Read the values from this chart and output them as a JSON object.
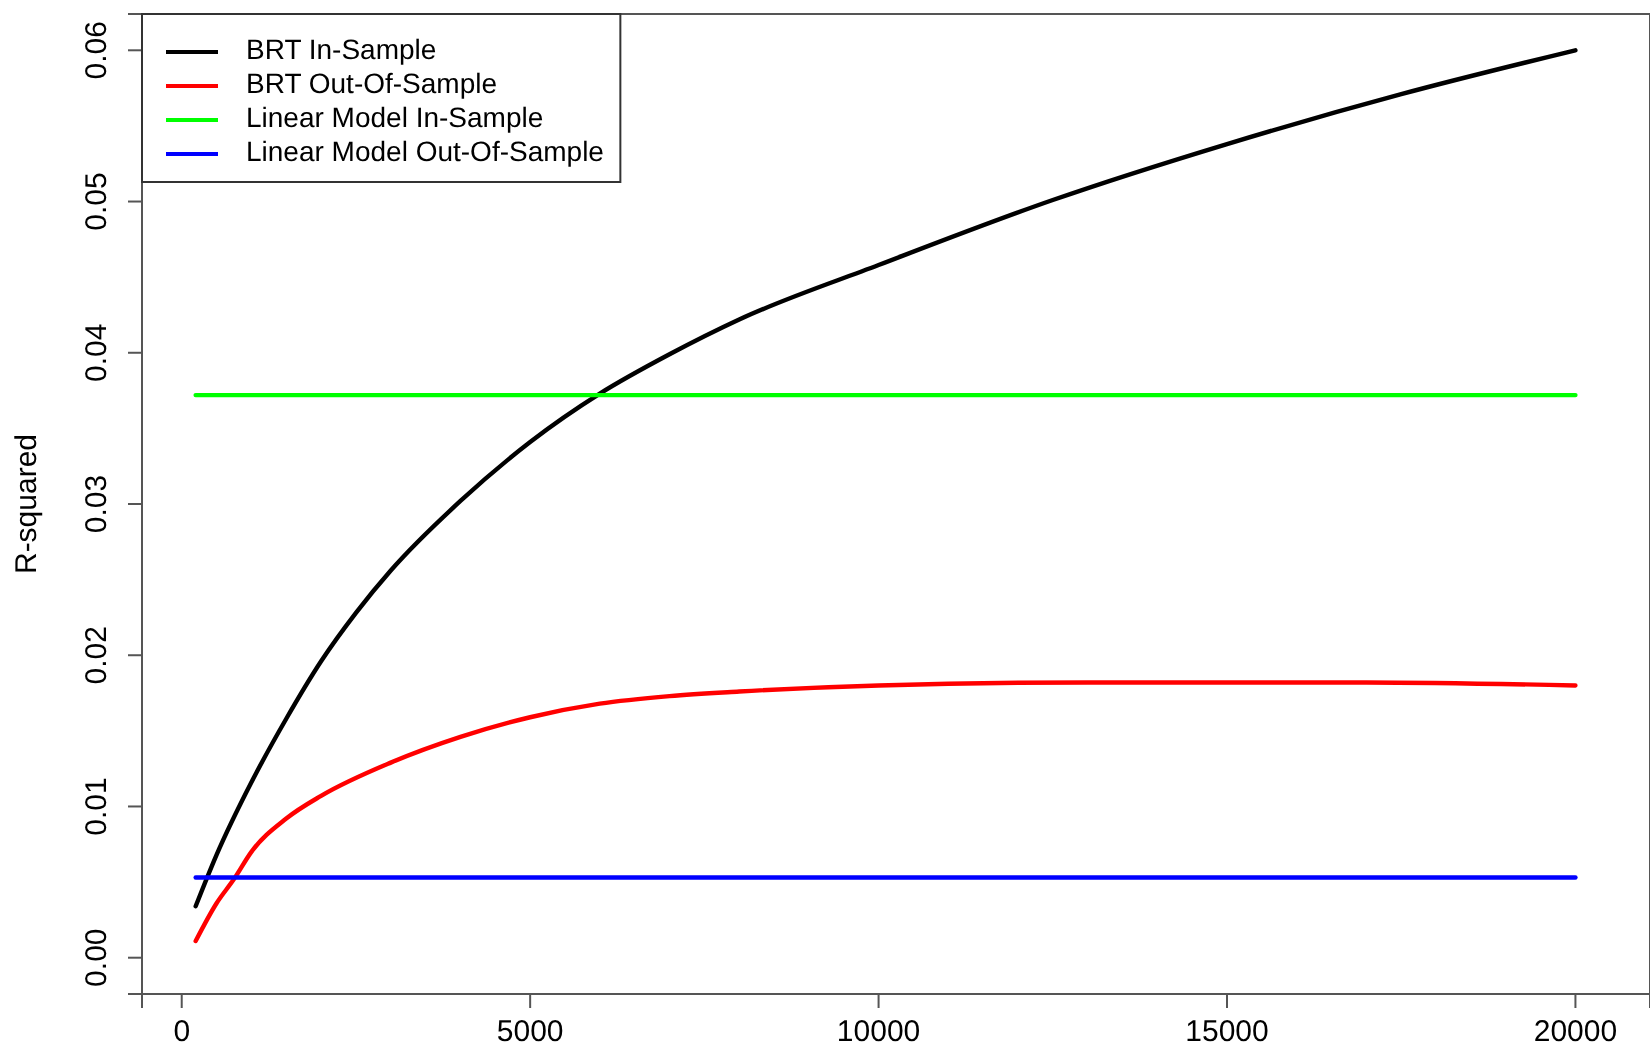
{
  "chart_data": {
    "type": "line",
    "ylabel": "R-squared",
    "xlim": [
      -570,
      21070
    ],
    "ylim": [
      -0.0024,
      0.0624
    ],
    "xticks": [
      0,
      5000,
      10000,
      15000,
      20000
    ],
    "yticks": [
      {
        "value": 0,
        "label": "0.00"
      },
      {
        "value": 0.01,
        "label": "0.01"
      },
      {
        "value": 0.02,
        "label": "0.02"
      },
      {
        "value": 0.03,
        "label": "0.03"
      },
      {
        "value": 0.04,
        "label": "0.04"
      },
      {
        "value": 0.05,
        "label": "0.05"
      },
      {
        "value": 0.06,
        "label": "0.06"
      }
    ],
    "grid": false,
    "legend": "top left",
    "line_style": "solid",
    "marker": "none",
    "series": [
      {
        "name": "BRT In-Sample",
        "color": "#000000",
        "x": [
          200,
          500,
          1000,
          1500,
          2000,
          2500,
          3000,
          4000,
          5000,
          6000,
          7000,
          8000,
          10000,
          12500,
          15000,
          17500,
          20000
        ],
        "values": [
          0.0034,
          0.0068,
          0.0116,
          0.0158,
          0.0196,
          0.0228,
          0.0256,
          0.0302,
          0.0341,
          0.0373,
          0.0399,
          0.0422,
          0.0458,
          0.0501,
          0.0538,
          0.0571,
          0.06
        ]
      },
      {
        "name": "BRT Out-Of-Sample",
        "color": "#ff0000",
        "x": [
          200,
          500,
          750,
          1000,
          1500,
          2000,
          3000,
          4000,
          5000,
          6000,
          7000,
          8000,
          10000,
          13000,
          17000,
          20000
        ],
        "values": [
          0.0011,
          0.0036,
          0.0052,
          0.007,
          0.0092,
          0.0107,
          0.0129,
          0.0146,
          0.0159,
          0.0168,
          0.0173,
          0.0176,
          0.018,
          0.0182,
          0.0182,
          0.018
        ]
      },
      {
        "name": "Linear Model In-Sample",
        "color": "#00ff00",
        "x": [
          200,
          20000
        ],
        "values": [
          0.0372,
          0.0372
        ]
      },
      {
        "name": "Linear Model Out-Of-Sample",
        "color": "#0000ff",
        "x": [
          200,
          20000
        ],
        "values": [
          0.0053,
          0.0053
        ]
      }
    ]
  }
}
